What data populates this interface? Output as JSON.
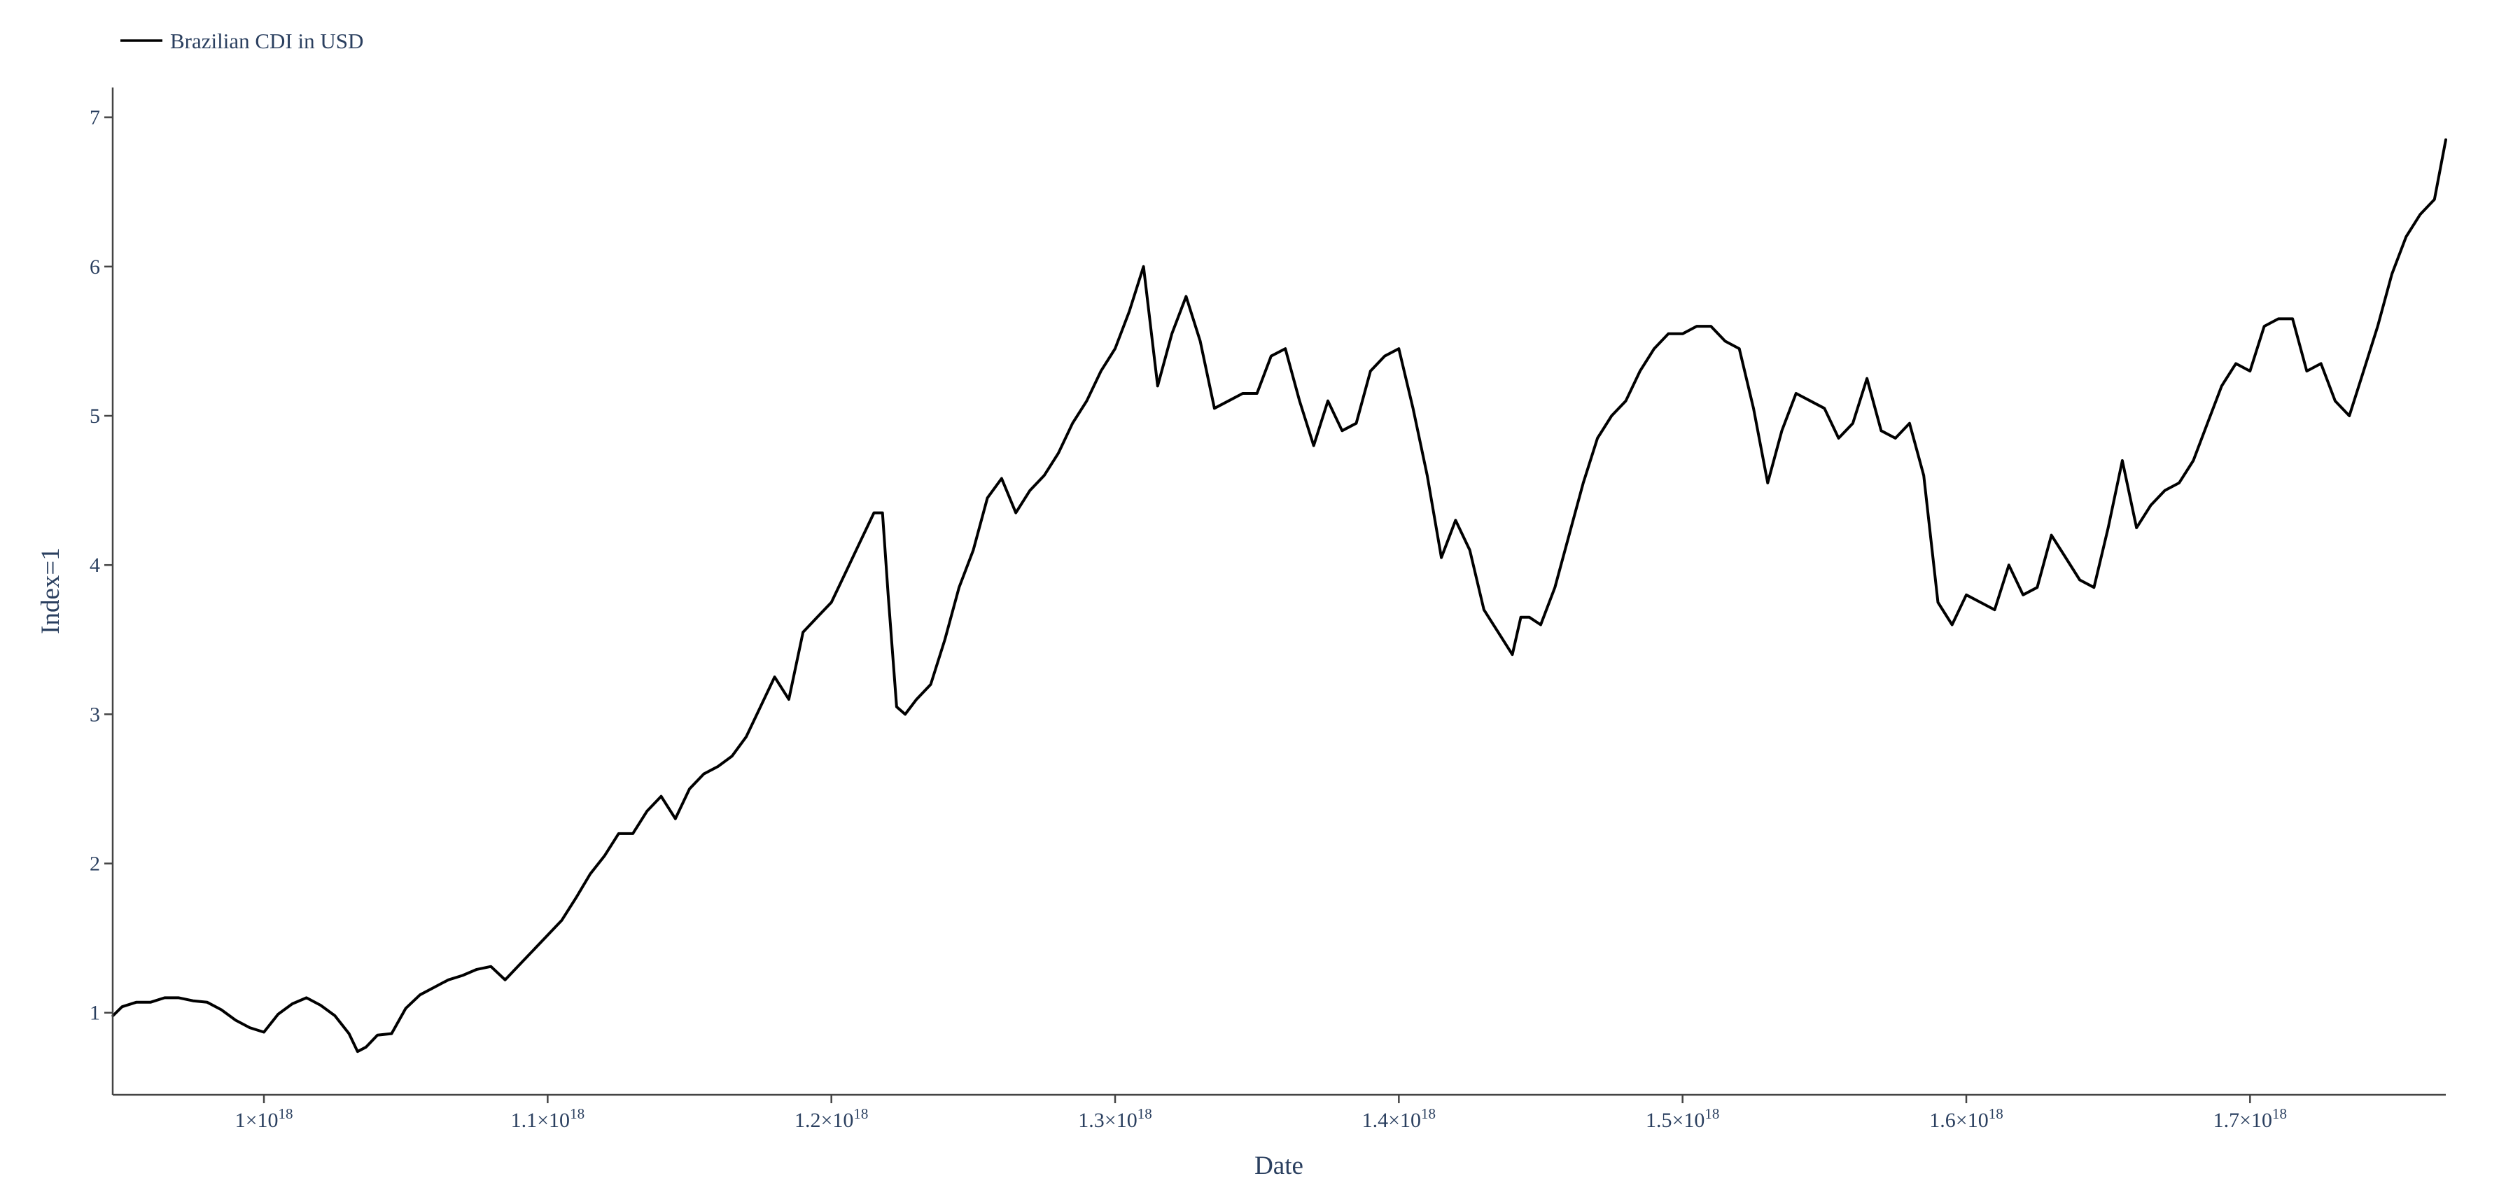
{
  "chart_data": {
    "type": "line",
    "xlabel": "Date",
    "ylabel": "Index=1",
    "grid": false,
    "legend_placement": "top-left",
    "line_color": "#000000",
    "text_color": "#2a3f5f",
    "xlim": [
      946700000000000000,
      1769000000000000000
    ],
    "ylim": [
      0.45,
      7.2
    ],
    "x_ticks": [
      {
        "value": 1000000000000000000,
        "mantissa": "1",
        "exponent": "18"
      },
      {
        "value": 1100000000000000000,
        "mantissa": "1.1",
        "exponent": "18"
      },
      {
        "value": 1200000000000000000,
        "mantissa": "1.2",
        "exponent": "18"
      },
      {
        "value": 1300000000000000000,
        "mantissa": "1.3",
        "exponent": "18"
      },
      {
        "value": 1400000000000000000,
        "mantissa": "1.4",
        "exponent": "18"
      },
      {
        "value": 1500000000000000000,
        "mantissa": "1.5",
        "exponent": "18"
      },
      {
        "value": 1600000000000000000,
        "mantissa": "1.6",
        "exponent": "18"
      },
      {
        "value": 1700000000000000000,
        "mantissa": "1.7",
        "exponent": "18"
      }
    ],
    "y_ticks": [
      1,
      2,
      3,
      4,
      5,
      6,
      7
    ],
    "series": [
      {
        "name": "Brazilian CDI in USD",
        "x_scale": 1e+16,
        "x": [
          94.68,
          95.0,
          95.5,
          96.0,
          96.5,
          97.0,
          97.5,
          98.0,
          98.5,
          99.0,
          99.5,
          100.0,
          100.5,
          101.0,
          101.5,
          102.0,
          102.5,
          103.0,
          103.3,
          103.6,
          104.0,
          104.5,
          105.0,
          105.5,
          106.0,
          106.5,
          107.0,
          107.5,
          108.0,
          108.5,
          109.0,
          109.5,
          110.0,
          110.5,
          111.0,
          111.5,
          112.0,
          112.5,
          113.0,
          113.5,
          114.0,
          114.5,
          115.0,
          115.5,
          116.0,
          116.5,
          117.0,
          117.5,
          118.0,
          118.5,
          119.0,
          119.5,
          120.0,
          120.5,
          121.0,
          121.5,
          121.8,
          122.0,
          122.3,
          122.6,
          123.0,
          123.5,
          124.0,
          124.5,
          125.0,
          125.5,
          126.0,
          126.5,
          127.0,
          127.5,
          128.0,
          128.5,
          129.0,
          129.5,
          130.0,
          130.5,
          131.0,
          131.5,
          132.0,
          132.5,
          133.0,
          133.5,
          134.0,
          134.5,
          135.0,
          135.5,
          136.0,
          136.5,
          137.0,
          137.5,
          138.0,
          138.5,
          139.0,
          139.5,
          140.0,
          140.5,
          141.0,
          141.5,
          142.0,
          142.5,
          143.0,
          143.5,
          144.0,
          144.3,
          144.6,
          145.0,
          145.5,
          146.0,
          146.5,
          147.0,
          147.5,
          148.0,
          148.5,
          149.0,
          149.5,
          150.0,
          150.5,
          151.0,
          151.5,
          152.0,
          152.5,
          153.0,
          153.5,
          154.0,
          154.5,
          155.0,
          155.5,
          156.0,
          156.5,
          157.0,
          157.5,
          158.0,
          158.5,
          159.0,
          159.5,
          160.0,
          160.5,
          161.0,
          161.5,
          162.0,
          162.5,
          163.0,
          163.5,
          164.0,
          164.5,
          165.0,
          165.5,
          166.0,
          166.5,
          167.0,
          167.5,
          168.0,
          168.5,
          169.0,
          169.5,
          170.0,
          170.5,
          171.0,
          171.5,
          172.0,
          172.5,
          173.0,
          173.5,
          174.0,
          174.5,
          175.0,
          175.5,
          176.0,
          176.5,
          176.9
        ],
        "y": [
          0.98,
          1.04,
          1.07,
          1.07,
          1.1,
          1.1,
          1.08,
          1.07,
          1.02,
          0.95,
          0.9,
          0.87,
          0.99,
          1.06,
          1.1,
          1.05,
          0.98,
          0.86,
          0.74,
          0.77,
          0.85,
          0.86,
          1.03,
          1.12,
          1.17,
          1.22,
          1.25,
          1.29,
          1.31,
          1.22,
          1.32,
          1.42,
          1.52,
          1.62,
          1.77,
          1.93,
          2.05,
          2.2,
          2.2,
          2.35,
          2.45,
          2.3,
          2.5,
          2.6,
          2.65,
          2.72,
          2.85,
          3.05,
          3.25,
          3.1,
          3.55,
          3.65,
          3.75,
          3.95,
          4.15,
          4.35,
          4.35,
          3.8,
          3.05,
          3.0,
          3.1,
          3.2,
          3.5,
          3.85,
          4.1,
          4.45,
          4.58,
          4.35,
          4.5,
          4.6,
          4.75,
          4.95,
          5.1,
          5.3,
          5.45,
          5.7,
          6.0,
          5.2,
          5.55,
          5.8,
          5.5,
          5.05,
          5.1,
          5.15,
          5.15,
          5.4,
          5.45,
          5.1,
          4.8,
          5.1,
          4.9,
          4.95,
          5.3,
          5.4,
          5.45,
          5.05,
          4.6,
          4.05,
          4.3,
          4.1,
          3.7,
          3.55,
          3.4,
          3.65,
          3.65,
          3.6,
          3.85,
          4.2,
          4.55,
          4.85,
          5.0,
          5.1,
          5.3,
          5.45,
          5.55,
          5.55,
          5.6,
          5.6,
          5.5,
          5.45,
          5.05,
          4.55,
          4.9,
          5.15,
          5.1,
          5.05,
          4.85,
          4.95,
          5.25,
          4.9,
          4.85,
          4.95,
          4.6,
          3.75,
          3.6,
          3.8,
          3.75,
          3.7,
          4.0,
          3.8,
          3.85,
          4.2,
          4.05,
          3.9,
          3.85,
          4.25,
          4.7,
          4.25,
          4.4,
          4.5,
          4.55,
          4.7,
          4.95,
          5.2,
          5.35,
          5.3,
          5.6,
          5.65,
          5.65,
          5.3,
          5.35,
          5.1,
          5.0,
          5.3,
          5.6,
          5.95,
          6.2,
          6.35,
          6.45,
          6.85
        ]
      }
    ]
  }
}
